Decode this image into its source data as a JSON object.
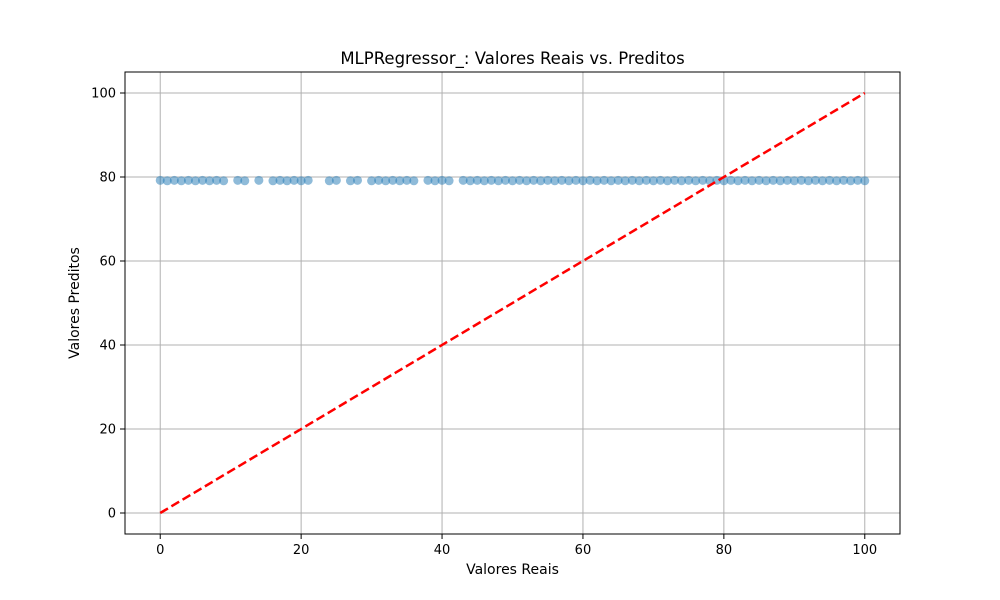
{
  "chart_data": {
    "type": "scatter",
    "title": "MLPRegressor_: Valores Reais vs. Preditos",
    "xlabel": "Valores Reais",
    "ylabel": "Valores Preditos",
    "xlim": [
      -5,
      105
    ],
    "ylim": [
      -5,
      105
    ],
    "xticks": [
      0,
      20,
      40,
      60,
      80,
      100
    ],
    "yticks": [
      0,
      20,
      40,
      60,
      80,
      100
    ],
    "grid": true,
    "legend": "none",
    "colors": {
      "points": "#1f77b4",
      "reference_line": "#ff0000"
    },
    "reference_line": {
      "style": "dashed",
      "x": [
        0,
        100
      ],
      "y": [
        0,
        100
      ]
    },
    "series": [
      {
        "x": [
          0,
          1,
          2,
          3,
          4,
          5,
          6,
          7,
          8,
          9,
          11,
          12,
          14,
          16,
          17,
          18,
          19,
          20,
          21,
          24,
          25,
          27,
          28,
          30,
          31,
          32,
          33,
          34,
          35,
          36,
          38,
          39,
          40,
          41,
          43,
          44,
          45,
          46,
          47,
          48,
          49,
          50,
          51,
          52,
          53,
          54,
          55,
          56,
          57,
          58,
          59,
          60,
          61,
          62,
          63,
          64,
          65,
          66,
          67,
          68,
          69,
          70,
          71,
          72,
          73,
          74,
          75,
          76,
          77,
          78,
          79,
          80,
          81,
          82,
          83,
          84,
          85,
          86,
          87,
          88,
          89,
          90,
          91,
          92,
          93,
          94,
          95,
          96,
          97,
          98,
          99,
          100
        ],
        "y": [
          79.2,
          79.1,
          79.2,
          79.1,
          79.2,
          79.1,
          79.2,
          79.1,
          79.2,
          79.1,
          79.2,
          79.1,
          79.2,
          79.1,
          79.2,
          79.1,
          79.2,
          79.1,
          79.2,
          79.1,
          79.2,
          79.1,
          79.2,
          79.1,
          79.2,
          79.1,
          79.2,
          79.1,
          79.2,
          79.1,
          79.2,
          79.1,
          79.2,
          79.1,
          79.2,
          79.1,
          79.2,
          79.1,
          79.2,
          79.1,
          79.2,
          79.1,
          79.2,
          79.1,
          79.2,
          79.1,
          79.2,
          79.1,
          79.2,
          79.1,
          79.2,
          79.1,
          79.2,
          79.1,
          79.2,
          79.1,
          79.2,
          79.1,
          79.2,
          79.1,
          79.2,
          79.1,
          79.2,
          79.1,
          79.2,
          79.1,
          79.2,
          79.1,
          79.2,
          79.1,
          79.2,
          79.1,
          79.2,
          79.1,
          79.2,
          79.1,
          79.2,
          79.1,
          79.2,
          79.1,
          79.2,
          79.1,
          79.2,
          79.1,
          79.2,
          79.1,
          79.2,
          79.1,
          79.2,
          79.1,
          79.2,
          79.1
        ]
      }
    ]
  }
}
